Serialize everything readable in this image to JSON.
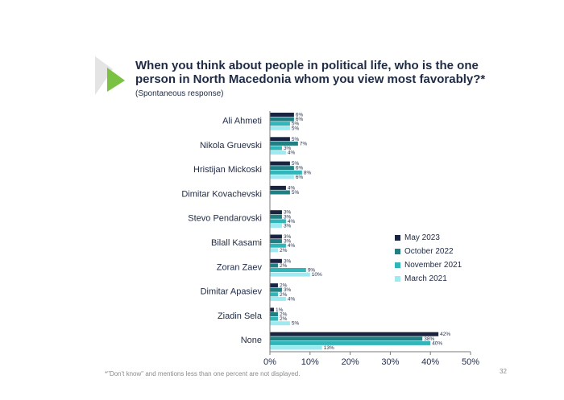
{
  "title": "When you think about people in political life, who is the one person in North Macedonia whom you view most favorably?*",
  "subtitle": "(Spontaneous response)",
  "footnote": "*\"Don't know\" and mentions less than one percent are not displayed.",
  "page_number": "32",
  "colors": {
    "May 2023": "#1a2440",
    "October 2022": "#1f7f83",
    "November 2021": "#32b5b8",
    "March 2021": "#9fe9f1",
    "accent_arrow": "#7cc242"
  },
  "chart_data": {
    "type": "bar",
    "orientation": "horizontal",
    "categories": [
      "Ali Ahmeti",
      "Nikola Gruevski",
      "Hristijan Mickoski",
      "Dimitar Kovachevski",
      "Stevo Pendarovski",
      "Bilall Kasami",
      "Zoran Zaev",
      "Dimitar Apasiev",
      "Ziadin Sela",
      "None"
    ],
    "series": [
      {
        "name": "May 2023",
        "values": [
          6,
          5,
          5,
          4,
          3,
          3,
          3,
          2,
          1,
          42
        ],
        "labels": [
          "6%",
          "5%",
          "5%",
          "4%",
          "3%",
          "3%",
          "3%",
          "2%",
          "1%",
          "42%"
        ]
      },
      {
        "name": "October 2022",
        "values": [
          6,
          7,
          6,
          5,
          3,
          3,
          2,
          3,
          2,
          38
        ],
        "labels": [
          "6%",
          "7%",
          "6%",
          "5%",
          "3%",
          "3%",
          "2%",
          "3%",
          "2%",
          "38%"
        ]
      },
      {
        "name": "November 2021",
        "values": [
          5,
          3,
          8,
          null,
          4,
          4,
          9,
          2,
          2,
          40
        ],
        "labels": [
          "5%",
          "3%",
          "8%",
          "",
          "4%",
          "4%",
          "9%",
          "2%",
          "2%",
          "40%"
        ]
      },
      {
        "name": "March 2021",
        "values": [
          5,
          4,
          6,
          null,
          3,
          2,
          10,
          4,
          5,
          13
        ],
        "labels": [
          "5%",
          "4%",
          "6%",
          "",
          "3%",
          "2%",
          "10%",
          "4%",
          "5%",
          "13%"
        ]
      }
    ],
    "xlim": [
      0,
      50
    ],
    "xticks": [
      "0%",
      "10%",
      "20%",
      "30%",
      "40%",
      "50%"
    ],
    "xtick_values": [
      0,
      10,
      20,
      30,
      40,
      50
    ],
    "legend_position": "right",
    "grid": false
  }
}
